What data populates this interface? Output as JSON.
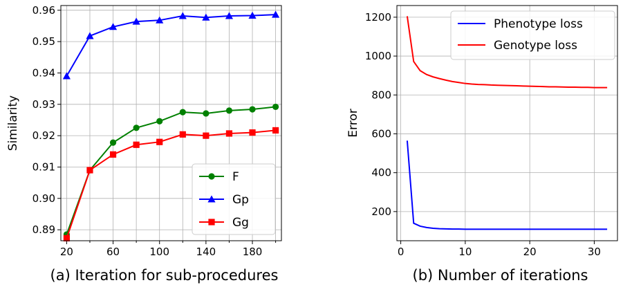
{
  "chart_data": [
    {
      "type": "line",
      "caption": "(a) Iteration for sub-procedures",
      "xlabel": "",
      "ylabel": "Similarity",
      "xlim": [
        15,
        205
      ],
      "ylim": [
        0.8865,
        0.9615
      ],
      "xticks": [
        20,
        60,
        100,
        140,
        180
      ],
      "xtick_labels": [
        "20",
        "60",
        "100",
        "140",
        "180"
      ],
      "xminor": [
        40,
        80,
        120,
        160,
        200
      ],
      "yticks": [
        0.89,
        0.9,
        0.91,
        0.92,
        0.93,
        0.94,
        0.95,
        0.96
      ],
      "ytick_labels": [
        "0.89",
        "0.90",
        "0.91",
        "0.92",
        "0.93",
        "0.94",
        "0.95",
        "0.96"
      ],
      "grid": true,
      "legend": "bottom-right",
      "x": [
        20,
        40,
        60,
        80,
        100,
        120,
        140,
        160,
        180,
        200
      ],
      "series": [
        {
          "name": "F",
          "color": "#008000",
          "marker": "circle",
          "values": [
            0.8885,
            0.909,
            0.9178,
            0.9225,
            0.9246,
            0.9275,
            0.9271,
            0.928,
            0.9284,
            0.9292
          ]
        },
        {
          "name": "Gp",
          "color": "#0000ff",
          "marker": "triangle",
          "values": [
            0.939,
            0.9518,
            0.9547,
            0.9564,
            0.9568,
            0.9582,
            0.9577,
            0.9582,
            0.9583,
            0.9586
          ]
        },
        {
          "name": "Gg",
          "color": "#ff0000",
          "marker": "square",
          "values": [
            0.8873,
            0.909,
            0.914,
            0.9171,
            0.918,
            0.9204,
            0.92,
            0.9207,
            0.921,
            0.9217
          ]
        }
      ]
    },
    {
      "type": "line",
      "caption": "(b) Number of iterations",
      "xlabel": "",
      "ylabel": "Error",
      "xlim": [
        -0.6,
        33.6
      ],
      "ylim": [
        50,
        1260
      ],
      "xticks": [
        0,
        10,
        20,
        30
      ],
      "xtick_labels": [
        "0",
        "10",
        "20",
        "30"
      ],
      "yticks": [
        200,
        400,
        600,
        800,
        1000,
        1200
      ],
      "ytick_labels": [
        "200",
        "400",
        "600",
        "800",
        "1000",
        "1200"
      ],
      "grid": true,
      "legend": "top-right",
      "x": [
        1,
        2,
        3,
        4,
        5,
        6,
        7,
        8,
        9,
        10,
        11,
        12,
        13,
        14,
        15,
        16,
        17,
        18,
        19,
        20,
        21,
        22,
        23,
        24,
        25,
        26,
        27,
        28,
        29,
        30,
        31,
        32
      ],
      "series": [
        {
          "name": "Phenotype loss",
          "color": "#0000ff",
          "marker": "none",
          "values": [
            565,
            140,
            125,
            118,
            114,
            112,
            111,
            110,
            110,
            109,
            109,
            109,
            109,
            109,
            109,
            109,
            109,
            109,
            109,
            109,
            109,
            109,
            109,
            109,
            109,
            109,
            109,
            109,
            109,
            109,
            109,
            109
          ]
        },
        {
          "name": "Genotype loss",
          "color": "#ff0000",
          "marker": "none",
          "values": [
            1205,
            972,
            925,
            905,
            893,
            884,
            876,
            869,
            864,
            859,
            856,
            854,
            853,
            851,
            850,
            849,
            848,
            847,
            846,
            845,
            844,
            843,
            842,
            842,
            841,
            840,
            840,
            839,
            839,
            838,
            838,
            838
          ]
        }
      ]
    }
  ]
}
